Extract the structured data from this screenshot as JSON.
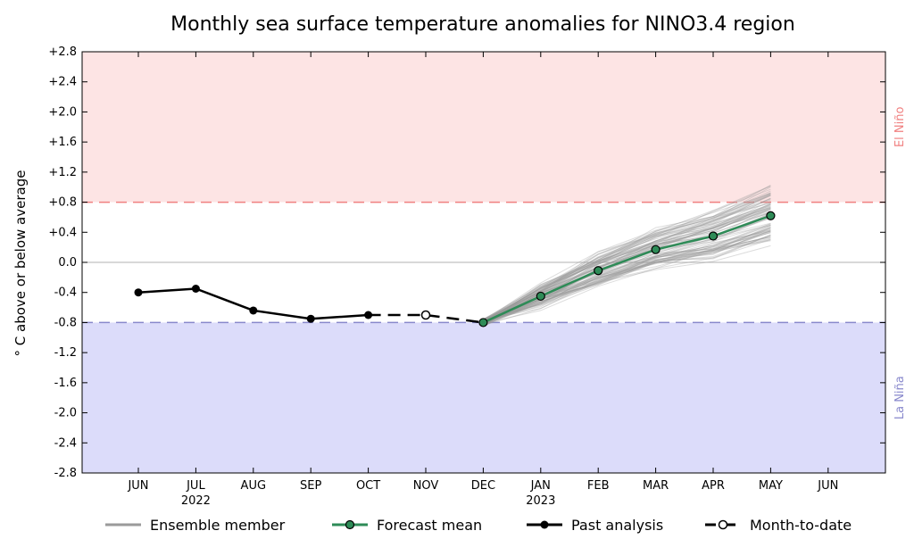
{
  "chart_data": {
    "type": "line",
    "title": "Monthly sea surface temperature anomalies for NINO3.4 region",
    "ylabel": "° C above or below average",
    "ylim": [
      -2.8,
      2.8
    ],
    "yticks": [
      "+2.8",
      "+2.4",
      "+2.0",
      "+1.6",
      "+1.2",
      "+0.8",
      "+0.4",
      "0.0",
      "-0.4",
      "-0.8",
      "-1.2",
      "-1.6",
      "-2.0",
      "-2.4",
      "-2.8"
    ],
    "categories": [
      "JUN",
      "JUL",
      "AUG",
      "SEP",
      "OCT",
      "NOV",
      "DEC",
      "JAN",
      "FEB",
      "MAR",
      "APR",
      "MAY",
      "JUN"
    ],
    "year_labels": [
      {
        "category_index": 1,
        "label": "2022"
      },
      {
        "category_index": 7,
        "label": "2023"
      }
    ],
    "thresholds": [
      {
        "label": "El Niño",
        "value": 0.8,
        "color": "#f08080",
        "fill": "#fde4e4"
      },
      {
        "label": "La Niña",
        "value": -0.8,
        "color": "#8888cc",
        "fill": "#dcdcfa"
      }
    ],
    "series": [
      {
        "name": "Past analysis",
        "color": "#000000",
        "points": [
          [
            0,
            -0.4
          ],
          [
            1,
            -0.35
          ],
          [
            2,
            -0.64
          ],
          [
            3,
            -0.75
          ],
          [
            4,
            -0.7
          ]
        ]
      },
      {
        "name": "Month-to-date",
        "color": "#000000",
        "points": [
          [
            4,
            -0.7
          ],
          [
            5,
            -0.7
          ],
          [
            6,
            -0.8
          ]
        ]
      },
      {
        "name": "Forecast mean",
        "color": "#2e8b57",
        "points": [
          [
            6,
            -0.8
          ],
          [
            7,
            -0.45
          ],
          [
            8,
            -0.11
          ],
          [
            9,
            0.17
          ],
          [
            10,
            0.35
          ],
          [
            11,
            0.62
          ]
        ]
      }
    ],
    "ensemble": {
      "name": "Ensemble member",
      "color": "#9a9a9a",
      "start_index": 6,
      "start_value": -0.8,
      "mean": [
        -0.8,
        -0.45,
        -0.11,
        0.17,
        0.35,
        0.62
      ],
      "count": 90,
      "spread_start": 0.1,
      "spread_end": 0.45
    },
    "legend": [
      "Ensemble member",
      "Forecast mean",
      "Past analysis",
      "Month-to-date"
    ],
    "legend_position": "bottom"
  }
}
